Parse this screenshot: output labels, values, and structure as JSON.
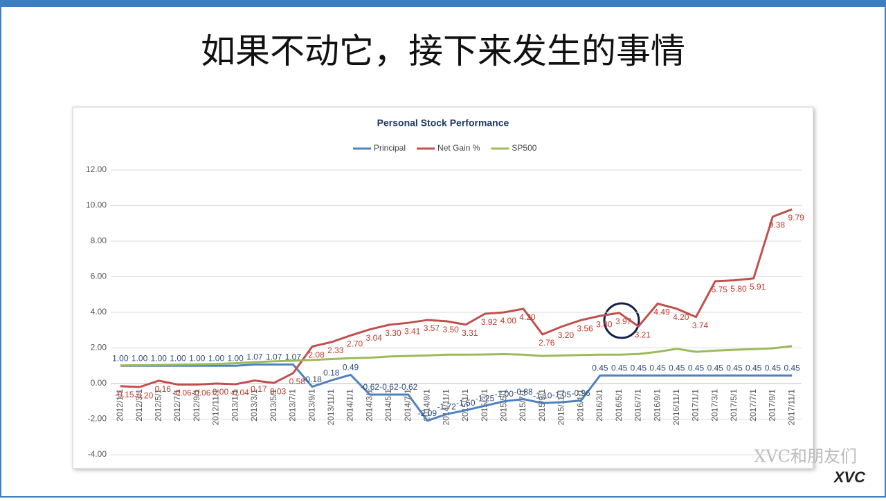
{
  "slide_title": "如果不动它，接下来发生的事情",
  "watermark": {
    "text": "XVC和朋友们",
    "logo": "XVC"
  },
  "chart_data": {
    "type": "line",
    "title": "Personal Stock Performance",
    "categories": [
      "2012/1/1",
      "2012/3/1",
      "2012/5/1",
      "2012/7/1",
      "2012/9/1",
      "2012/11/1",
      "2013/1/1",
      "2013/3/1",
      "2013/5/1",
      "2013/7/1",
      "2013/9/1",
      "2013/11/1",
      "2014/1/1",
      "2014/3/1",
      "2014/5/1",
      "2014/7/1",
      "2014/9/1",
      "2014/11/1",
      "2015/1/1",
      "2015/3/1",
      "2015/5/1",
      "2015/7/1",
      "2015/9/1",
      "2015/11/1",
      "2016/1/1",
      "2016/3/1",
      "2016/5/1",
      "2016/7/1",
      "2016/9/1",
      "2016/11/1",
      "2017/1/1",
      "2017/3/1",
      "2017/5/1",
      "2017/7/1",
      "2017/9/1",
      "2017/11/1"
    ],
    "series": [
      {
        "name": "Principal",
        "color": "#4f81bd",
        "label_color": "#2e4a7a",
        "values": [
          1.0,
          1.0,
          1.0,
          1.0,
          1.0,
          1.0,
          1.0,
          1.07,
          1.07,
          1.07,
          -0.18,
          0.18,
          0.49,
          -0.62,
          -0.62,
          -0.62,
          -2.09,
          -1.72,
          -1.5,
          -1.25,
          -1.0,
          -0.88,
          -1.1,
          -1.05,
          -0.96,
          0.45,
          0.45,
          0.45,
          0.45,
          0.45,
          0.45,
          0.45,
          0.45,
          0.45,
          0.45,
          0.45
        ],
        "value_labels": [
          "1.00",
          "1.00",
          "1.00",
          "1.00",
          "1.00",
          "1.00",
          "1.00",
          "1.07",
          "1.07",
          "1.07",
          "-0.18",
          "0.18",
          "0.49",
          "-0.62",
          "-0.62",
          "-0.62",
          "-2.09",
          "-1.72",
          "-1.50",
          "-1.25",
          "-1.00",
          "-0.88",
          "-1.10",
          "-1.05",
          "-0.96",
          "0.45",
          "0.45",
          "0.45",
          "0.45",
          "0.45",
          "0.45",
          "0.45",
          "0.45",
          "0.45",
          "0.45",
          "0.45"
        ]
      },
      {
        "name": "Net Gain %",
        "color": "#c0504d",
        "label_color": "#c0392b",
        "values": [
          -0.15,
          -0.2,
          0.16,
          -0.06,
          -0.06,
          0.0,
          -0.04,
          0.17,
          0.03,
          0.58,
          2.08,
          2.33,
          2.7,
          3.04,
          3.3,
          3.41,
          3.57,
          3.5,
          3.31,
          3.92,
          4.0,
          4.2,
          2.76,
          3.2,
          3.56,
          3.8,
          3.97,
          3.21,
          4.49,
          4.2,
          3.74,
          5.75,
          5.8,
          5.91,
          9.38,
          9.79
        ],
        "value_labels": [
          "-0.15",
          "-0.20",
          "0.16",
          "-0.06",
          "-0.06",
          "0.00",
          "-0.04",
          "0.17",
          "0.03",
          "0.58",
          "2.08",
          "2.33",
          "2.70",
          "3.04",
          "3.30",
          "3.41",
          "3.57",
          "3.50",
          "3.31",
          "3.92",
          "4.00",
          "4.20",
          "2.76",
          "3.20",
          "3.56",
          "3.80",
          "3.97",
          "3.21",
          "4.49",
          "4.20",
          "3.74",
          "5.75",
          "5.80",
          "5.91",
          "9.38",
          "9.79"
        ]
      },
      {
        "name": "SP500",
        "color": "#9bbb59",
        "values": [
          1.02,
          1.03,
          1.04,
          1.06,
          1.08,
          1.1,
          1.14,
          1.2,
          1.25,
          1.28,
          1.32,
          1.38,
          1.42,
          1.45,
          1.52,
          1.55,
          1.58,
          1.62,
          1.62,
          1.63,
          1.65,
          1.62,
          1.55,
          1.58,
          1.6,
          1.62,
          1.62,
          1.66,
          1.78,
          1.95,
          1.78,
          1.85,
          1.9,
          1.93,
          1.98,
          2.1
        ]
      }
    ],
    "ylim": [
      -4,
      12
    ],
    "yticks": [
      {
        "value": -4,
        "label": "-4.00"
      },
      {
        "value": -2,
        "label": "-2.00"
      },
      {
        "value": 0,
        "label": "0.00"
      },
      {
        "value": 2,
        "label": "2.00"
      },
      {
        "value": 4,
        "label": "4.00"
      },
      {
        "value": 6,
        "label": "6.00"
      },
      {
        "value": 8,
        "label": "8.00"
      },
      {
        "value": 10,
        "label": "10.00"
      },
      {
        "value": 12,
        "label": "12.00"
      }
    ],
    "grid": true,
    "legend": "top"
  }
}
